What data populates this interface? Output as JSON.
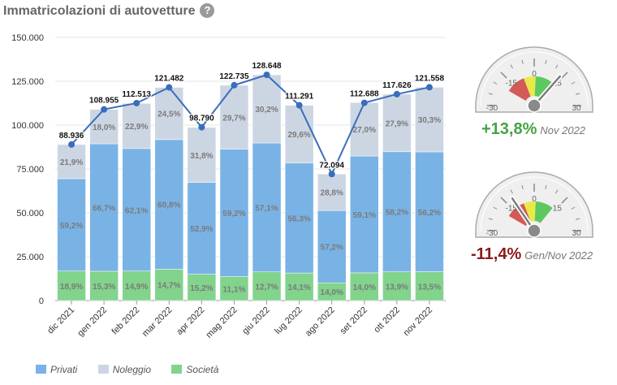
{
  "header": {
    "title": "Immatricolazioni di autovetture",
    "help_icon": "?"
  },
  "chart_data": {
    "type": "bar",
    "stacked": true,
    "categories": [
      "dic 2021",
      "gen 2022",
      "feb 2022",
      "mar 2022",
      "apr 2022",
      "mag 2022",
      "giu 2022",
      "lug 2022",
      "ago 2022",
      "set 2022",
      "ott 2022",
      "nov 2022"
    ],
    "series": [
      {
        "name": "Privati",
        "color": "#79b3e6",
        "pct_labels": [
          "59,2%",
          "66,7%",
          "62,1%",
          "60,8%",
          "52,9%",
          "59,2%",
          "57,1%",
          "56,3%",
          "57,2%",
          "59,1%",
          "58,2%",
          "56,2%"
        ]
      },
      {
        "name": "Noleggio",
        "color": "#ccd6e3",
        "pct_labels": [
          "21,9%",
          "18,0%",
          "22,9%",
          "24,5%",
          "31,8%",
          "29,7%",
          "30,2%",
          "29,6%",
          "28,8%",
          "27,0%",
          "27,9%",
          "30,3%"
        ]
      },
      {
        "name": "Società",
        "color": "#82d38c",
        "pct_labels": [
          "18,9%",
          "15,3%",
          "14,9%",
          "14,7%",
          "15,2%",
          "11,1%",
          "12,7%",
          "14,1%",
          "14,0%",
          "14,0%",
          "13,9%",
          "13,5%"
        ]
      }
    ],
    "totals": [
      88936,
      108955,
      112513,
      121482,
      98790,
      122735,
      128648,
      111291,
      72094,
      112688,
      117626,
      121558
    ],
    "total_labels": [
      "88.936",
      "108.955",
      "112.513",
      "121.482",
      "98.790",
      "122.735",
      "128.648",
      "111.291",
      "72.094",
      "112.688",
      "117.626",
      "121.558"
    ],
    "ylim": [
      0,
      150000
    ],
    "yticks": [
      "0",
      "25.000",
      "50.000",
      "75.000",
      "100.000",
      "125.000",
      "150.000"
    ],
    "grid": true,
    "legend_position": "bottom-left"
  },
  "gauges": [
    {
      "value": 13.8,
      "value_label": "+13,8%",
      "period": "Nov 2022",
      "color": "#44a444",
      "ticks": [
        "-30",
        "-15",
        "0",
        "15",
        "30"
      ]
    },
    {
      "value": -11.4,
      "value_label": "-11,4%",
      "period": "Gen/Nov 2022",
      "color": "#8b1a1a",
      "ticks": [
        "-30",
        "-15",
        "0",
        "15",
        "30"
      ]
    }
  ],
  "legend": [
    {
      "label": "Privati",
      "color": "#79b3e6"
    },
    {
      "label": "Noleggio",
      "color": "#ccd6e3"
    },
    {
      "label": "Società",
      "color": "#82d38c"
    }
  ]
}
